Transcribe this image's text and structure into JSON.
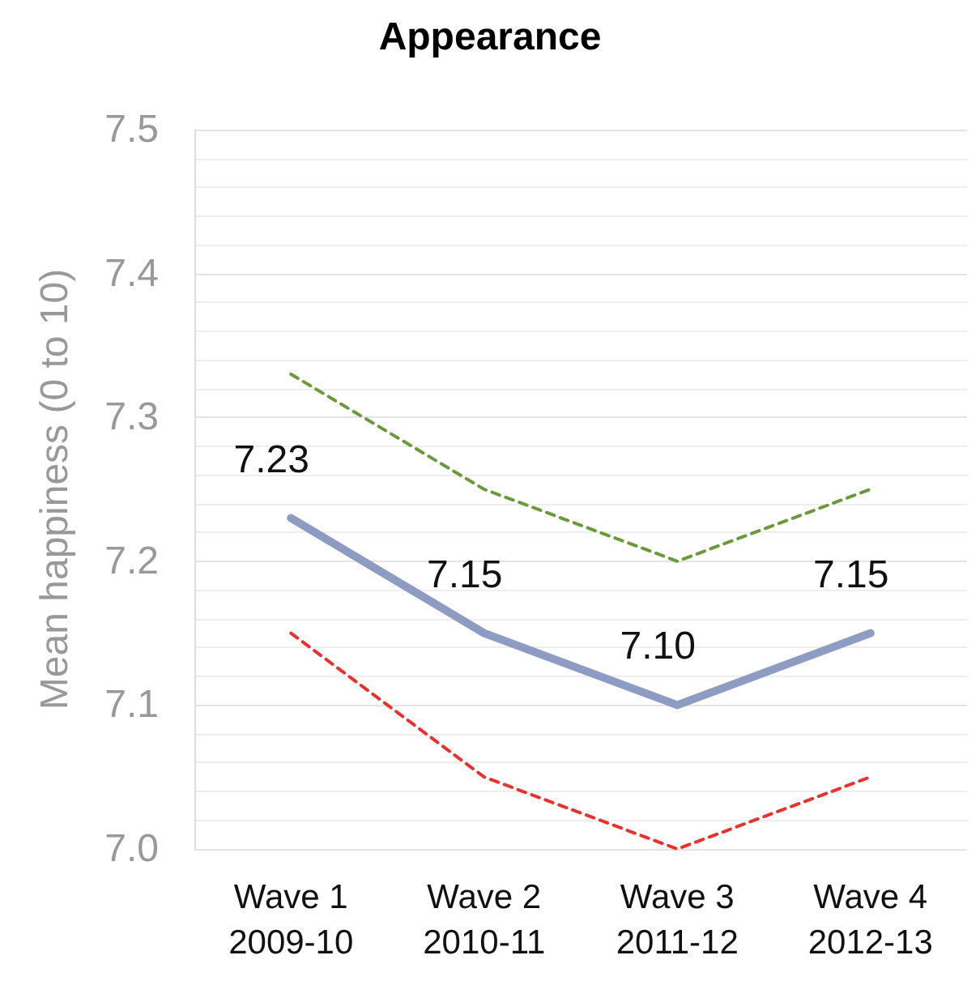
{
  "chart_data": {
    "type": "line",
    "title": "Appearance",
    "ylabel": "Mean happiness (0 to 10)",
    "categories": [
      "Wave 1\n2009-10",
      "Wave 2\n2010-11",
      "Wave 3\n2011-12",
      "Wave 4\n2012-13"
    ],
    "series": [
      {
        "color": "#6a9a3a",
        "values": [
          7.33,
          7.25,
          7.2,
          7.25
        ],
        "line_style": "dashed"
      },
      {
        "color": "#e8322e",
        "values": [
          7.15,
          7.05,
          7.0,
          7.05
        ],
        "line_style": "dashed"
      },
      {
        "color": "#8e9cc4",
        "values": [
          7.23,
          7.15,
          7.1,
          7.15
        ],
        "line_style": "solid",
        "value_labels": [
          "7.23",
          "7.15",
          "7.10",
          "7.15"
        ]
      }
    ],
    "ylim": [
      7.0,
      7.5
    ],
    "yticks": [
      {
        "value": 7.0,
        "label": "7.0"
      },
      {
        "value": 7.1,
        "label": "7.1"
      },
      {
        "value": 7.2,
        "label": "7.2"
      },
      {
        "value": 7.3,
        "label": "7.3"
      },
      {
        "value": 7.4,
        "label": "7.4"
      },
      {
        "value": 7.5,
        "label": "7.5"
      }
    ],
    "grid": true,
    "marker": "none"
  }
}
